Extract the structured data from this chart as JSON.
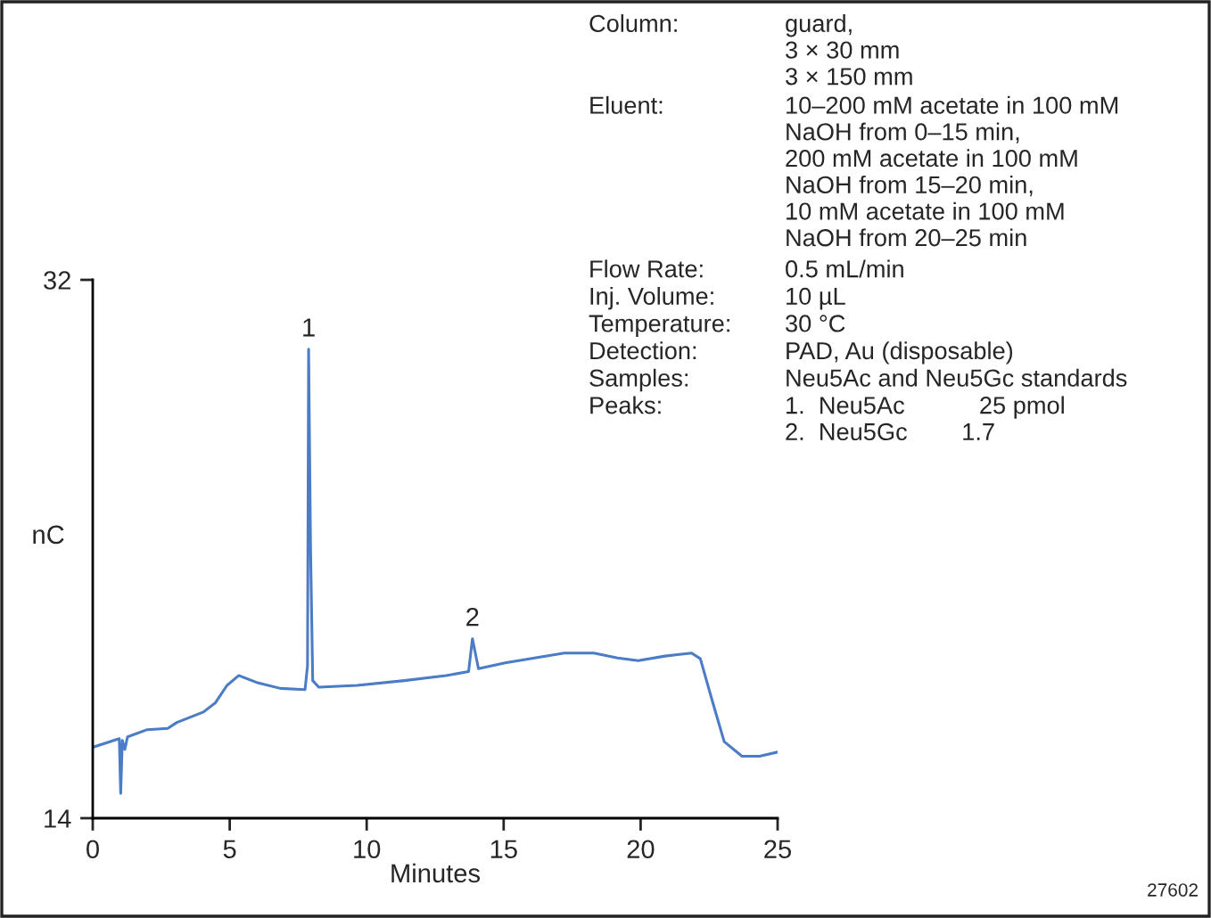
{
  "chart_data": {
    "type": "line",
    "xlabel": "Minutes",
    "ylabel": "nC",
    "x": [
      0,
      0.97,
      1.02,
      1.08,
      1.17,
      1.27,
      1.99,
      2.74,
      3.07,
      4.04,
      4.47,
      4.9,
      5.33,
      5.98,
      6.85,
      7.75,
      7.84,
      7.88,
      7.95,
      8.03,
      8.25,
      9.65,
      11.38,
      12.9,
      13.72,
      13.86,
      13.97,
      14.08,
      15.05,
      16.13,
      17.21,
      18.29,
      19.16,
      19.91,
      20.89,
      21.86,
      22.18,
      22.61,
      23.05,
      23.7,
      24.34,
      25
    ],
    "series": [
      {
        "color": "#4a7cc7",
        "values": [
          16.37,
          16.66,
          14.83,
          16.6,
          16.3,
          16.72,
          16.96,
          17.0,
          17.2,
          17.55,
          17.85,
          18.44,
          18.77,
          18.54,
          18.34,
          18.3,
          19.1,
          29.68,
          23.1,
          18.6,
          18.38,
          18.44,
          18.6,
          18.77,
          18.9,
          20.0,
          19.5,
          19.0,
          19.19,
          19.36,
          19.52,
          19.52,
          19.36,
          19.27,
          19.42,
          19.52,
          19.33,
          17.94,
          16.56,
          16.07,
          16.07,
          16.21
        ]
      }
    ],
    "xlim": [
      0,
      25
    ],
    "ylim": [
      14,
      32
    ],
    "xticks": [
      0,
      5,
      10,
      15,
      20,
      25
    ],
    "yticks": [
      14,
      32
    ],
    "grid": false,
    "legend": false,
    "marker": "none",
    "line_style": "solid",
    "annotations": [
      {
        "text": "1",
        "x": 7.88,
        "y": 29.68
      },
      {
        "text": "2",
        "x": 13.86,
        "y": 20.0
      },
      "Column:",
      "guard,\n3 × 30 mm\n3 × 150 mm",
      "Eluent:",
      "10–200 mM acetate in 100 mM\nNaOH from 0–15 min,\n200 mM acetate in 100 mM\nNaOH from 15–20 min,\n10 mM acetate in 100 mM\nNaOH from 20–25 min",
      "Flow Rate:",
      "0.5 mL/min",
      "Inj. Volume:",
      "10 µL",
      "Temperature:",
      "30 °C",
      "Detection:",
      "PAD, Au (disposable)",
      "Samples:",
      "Neu5Ac and Neu5Gc standards",
      "Peaks:",
      "1.  Neu5Ac           25 pmol\n2.  Neu5Gc        1.7",
      "27602"
    ]
  }
}
